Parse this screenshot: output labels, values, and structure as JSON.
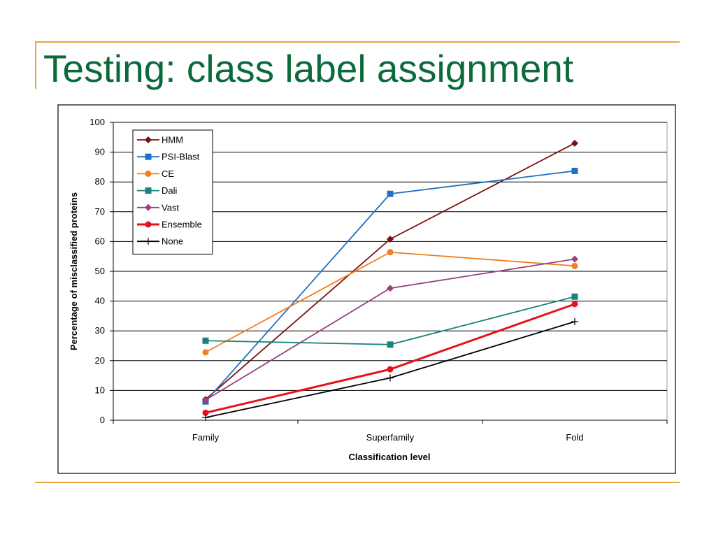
{
  "slide": {
    "title": "Testing: class label assignment"
  },
  "chart_data": {
    "type": "line",
    "categories": [
      "Family",
      "Superfamily",
      "Fold"
    ],
    "series": [
      {
        "name": "HMM",
        "values": [
          7,
          60.8,
          93
        ],
        "color": "#7b1010",
        "marker": "diamond",
        "stroke_weight": "normal"
      },
      {
        "name": "PSI-Blast",
        "values": [
          6.3,
          76,
          83.7
        ],
        "color": "#1f6fc5",
        "marker": "square",
        "stroke_weight": "normal"
      },
      {
        "name": "CE",
        "values": [
          22.8,
          56.4,
          51.8
        ],
        "color": "#f07f1e",
        "marker": "circle",
        "stroke_weight": "normal"
      },
      {
        "name": "Dali",
        "values": [
          26.7,
          25.4,
          41.5
        ],
        "color": "#18837c",
        "marker": "square",
        "stroke_weight": "normal"
      },
      {
        "name": "Vast",
        "values": [
          6.8,
          44.3,
          54.1
        ],
        "color": "#99407f",
        "marker": "diamond",
        "stroke_weight": "normal"
      },
      {
        "name": "Ensemble",
        "values": [
          2.5,
          17.1,
          39
        ],
        "color": "#e8101a",
        "marker": "circle",
        "stroke_weight": "bold"
      },
      {
        "name": "None",
        "values": [
          0.9,
          14.2,
          33.1
        ],
        "color": "#000000",
        "marker": "plus",
        "stroke_weight": "normal"
      }
    ],
    "xlabel": "Classification level",
    "ylabel": "Percentage of misclassified proteins",
    "ylim": [
      0,
      100
    ],
    "yticks": [
      0,
      10,
      20,
      30,
      40,
      50,
      60,
      70,
      80,
      90,
      100
    ],
    "grid": true,
    "legend_position": "top-left"
  }
}
